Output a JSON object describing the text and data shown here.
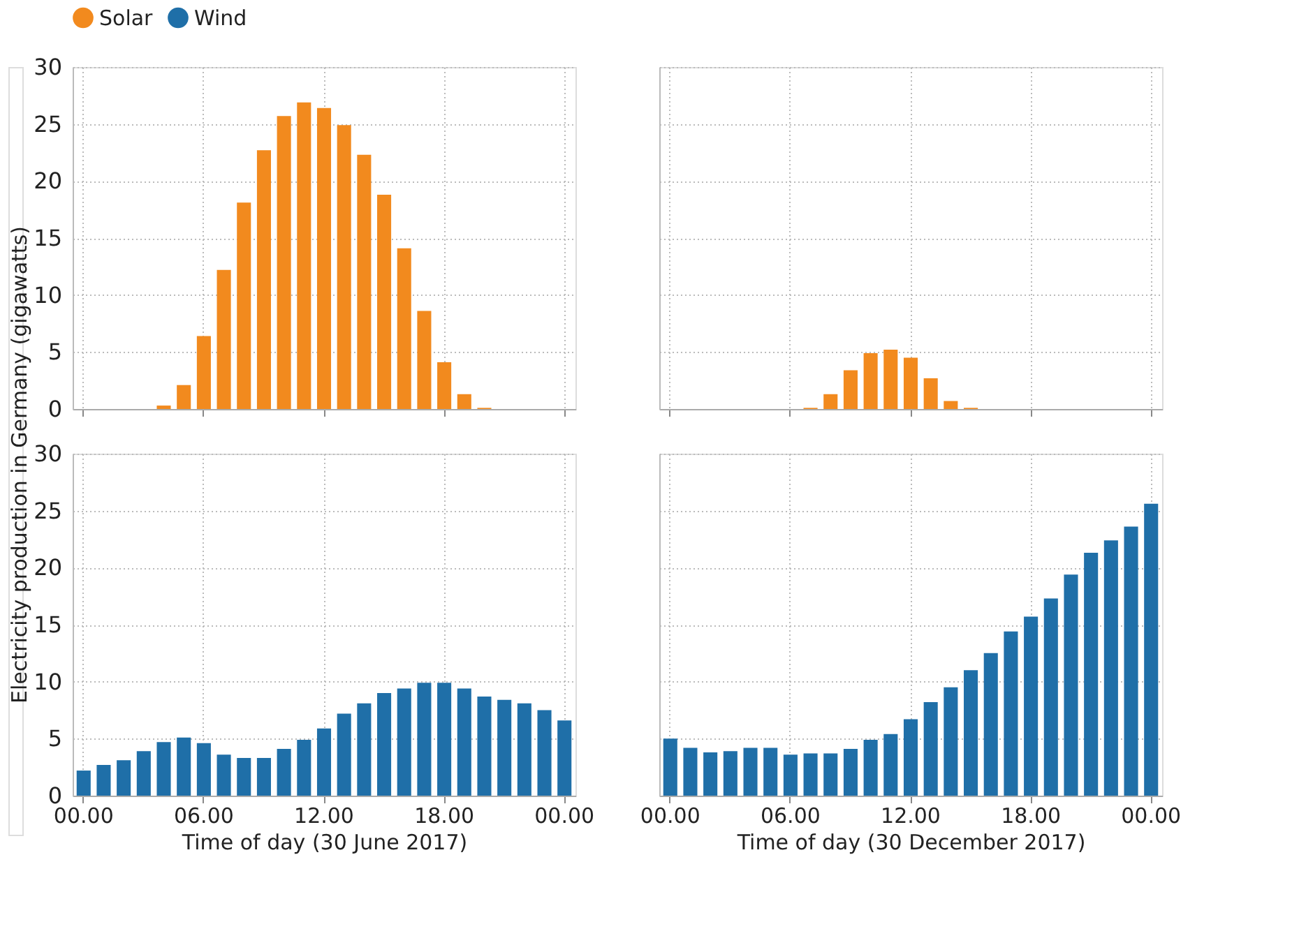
{
  "chart_data": [
    {
      "type": "bar",
      "ylabel": "Electricity production in Germany (gigawatts)",
      "legend": "top left",
      "tick_labels": "y",
      "grid": true,
      "categories": [
        "00.00",
        null,
        null,
        null,
        null,
        null,
        "06.00",
        null,
        null,
        null,
        null,
        null,
        "12.00",
        null,
        null,
        null,
        null,
        null,
        "18.00",
        null,
        null,
        null,
        null,
        null,
        "00.00"
      ],
      "ylim": [
        0,
        30
      ],
      "yticks": [
        0,
        5,
        10,
        15,
        20,
        25,
        30
      ],
      "series": [
        {
          "name": "Solar",
          "color": "#f28a1e",
          "values": [
            0,
            0,
            0,
            0,
            0.3,
            2.1,
            6.4,
            12.2,
            18.1,
            22.7,
            25.7,
            26.9,
            26.4,
            24.9,
            22.3,
            18.8,
            14.1,
            8.6,
            4.1,
            1.3,
            0.1,
            0,
            0,
            0,
            0
          ]
        }
      ]
    },
    {
      "type": "bar",
      "tick_labels": false,
      "grid": true,
      "categories": [
        "00.00",
        null,
        null,
        null,
        null,
        null,
        "06.00",
        null,
        null,
        null,
        null,
        null,
        "12.00",
        null,
        null,
        null,
        null,
        null,
        "18.00",
        null,
        null,
        null,
        null,
        null,
        "00.00"
      ],
      "ylim": [
        0,
        30
      ],
      "yticks": [
        0,
        5,
        10,
        15,
        20,
        25,
        30
      ],
      "series": [
        {
          "name": "Solar",
          "color": "#f28a1e",
          "values": [
            0,
            0,
            0,
            0,
            0,
            0,
            0,
            0.1,
            1.3,
            3.4,
            4.9,
            5.2,
            4.5,
            2.7,
            0.7,
            0.1,
            0,
            0,
            0,
            0,
            0,
            0,
            0,
            0,
            0
          ]
        }
      ]
    },
    {
      "type": "bar",
      "xlabel": "Time of day (30 June 2017)",
      "grid": true,
      "categories": [
        "00.00",
        null,
        null,
        null,
        null,
        null,
        "06.00",
        null,
        null,
        null,
        null,
        null,
        "12.00",
        null,
        null,
        null,
        null,
        null,
        "18.00",
        null,
        null,
        null,
        null,
        null,
        "00.00"
      ],
      "ylim": [
        0,
        30
      ],
      "yticks": [
        0,
        5,
        10,
        15,
        20,
        25,
        30
      ],
      "series": [
        {
          "name": "Wind",
          "color": "#1f6fa8",
          "values": [
            2.2,
            2.7,
            3.1,
            3.9,
            4.7,
            5.1,
            4.6,
            3.6,
            3.3,
            3.3,
            4.1,
            4.9,
            5.9,
            7.2,
            8.1,
            9.0,
            9.4,
            9.9,
            9.9,
            9.4,
            8.7,
            8.4,
            8.1,
            7.5,
            6.6
          ]
        }
      ]
    },
    {
      "type": "bar",
      "xlabel": "Time of day (30 December 2017)",
      "tick_labels": "x",
      "grid": true,
      "categories": [
        "00.00",
        null,
        null,
        null,
        null,
        null,
        "06.00",
        null,
        null,
        null,
        null,
        null,
        "12.00",
        null,
        null,
        null,
        null,
        null,
        "18.00",
        null,
        null,
        null,
        null,
        null,
        "00.00"
      ],
      "ylim": [
        0,
        30
      ],
      "yticks": [
        0,
        5,
        10,
        15,
        20,
        25,
        30
      ],
      "series": [
        {
          "name": "Wind",
          "color": "#1f6fa8",
          "values": [
            5.0,
            4.2,
            3.8,
            3.9,
            4.2,
            4.2,
            3.6,
            3.7,
            3.7,
            4.1,
            4.9,
            5.4,
            6.7,
            8.2,
            9.5,
            11.0,
            12.5,
            14.4,
            15.7,
            17.3,
            19.4,
            21.3,
            22.4,
            23.6,
            25.6
          ]
        }
      ]
    }
  ]
}
